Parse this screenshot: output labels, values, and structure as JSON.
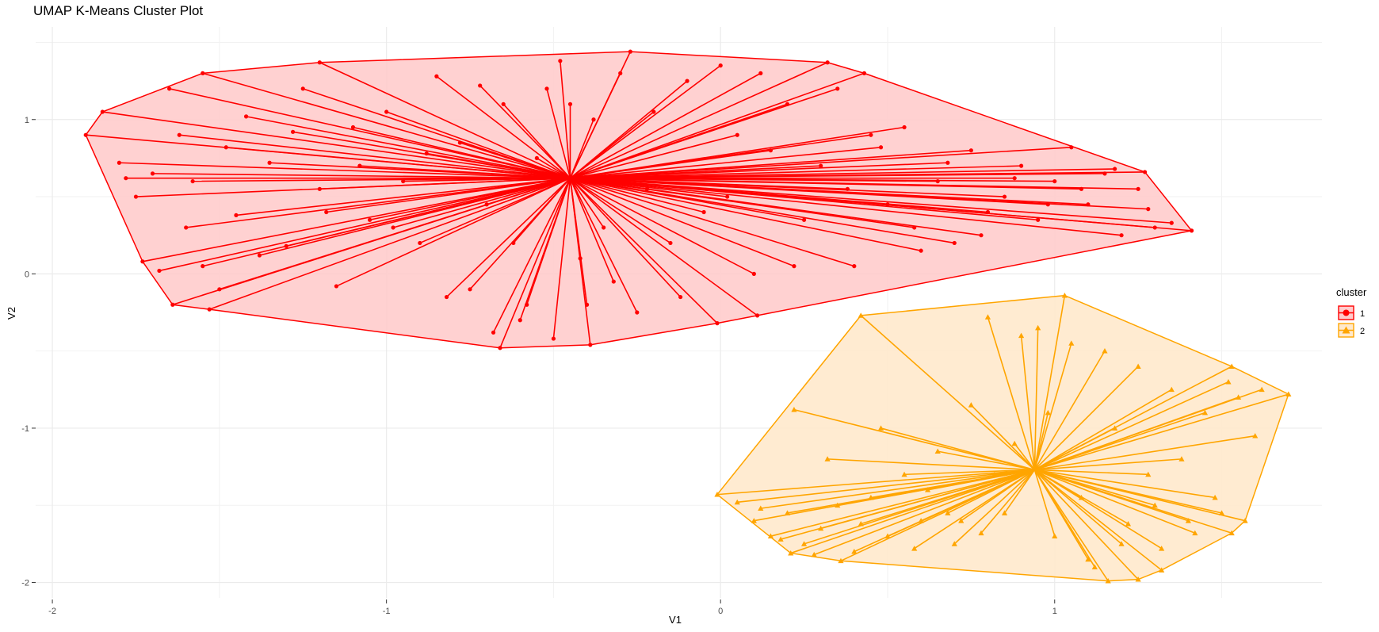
{
  "chart_data": {
    "type": "scatter",
    "title": "UMAP K-Means Cluster Plot",
    "xlabel": "V1",
    "ylabel": "V2",
    "xlim": [
      -2.05,
      1.8
    ],
    "ylim": [
      -2.1,
      1.6
    ],
    "x_ticks": [
      -2,
      -1,
      0,
      1
    ],
    "y_ticks": [
      -2,
      -1,
      0,
      1
    ],
    "x_tick_labels": [
      "-2",
      "-1",
      "0",
      "1"
    ],
    "y_tick_labels": [
      "-2",
      "-1",
      "0",
      "1"
    ],
    "grid": true,
    "legend_position": "right",
    "legend": {
      "title": "cluster",
      "entries": [
        "1",
        "2"
      ]
    },
    "series": [
      {
        "name": "1",
        "color": "#ff0000",
        "fill": "#ffcccc",
        "marker": "circle",
        "centroid": [
          -0.45,
          0.62
        ],
        "hull": [
          [
            -1.9,
            0.9
          ],
          [
            -1.85,
            1.05
          ],
          [
            -1.55,
            1.3
          ],
          [
            -1.2,
            1.37
          ],
          [
            -0.27,
            1.44
          ],
          [
            0.32,
            1.37
          ],
          [
            0.43,
            1.3
          ],
          [
            1.27,
            0.66
          ],
          [
            1.41,
            0.28
          ],
          [
            0.11,
            -0.27
          ],
          [
            -0.01,
            -0.32
          ],
          [
            -0.39,
            -0.46
          ],
          [
            -0.66,
            -0.48
          ],
          [
            -1.53,
            -0.23
          ],
          [
            -1.64,
            -0.2
          ],
          [
            -1.73,
            0.08
          ]
        ],
        "points": [
          [
            -1.9,
            0.9
          ],
          [
            -1.85,
            1.05
          ],
          [
            -1.55,
            1.3
          ],
          [
            -1.2,
            1.37
          ],
          [
            -0.27,
            1.44
          ],
          [
            0.32,
            1.37
          ],
          [
            0.43,
            1.3
          ],
          [
            1.27,
            0.66
          ],
          [
            1.41,
            0.28
          ],
          [
            0.11,
            -0.27
          ],
          [
            -0.01,
            -0.32
          ],
          [
            -0.39,
            -0.46
          ],
          [
            -0.66,
            -0.48
          ],
          [
            -1.53,
            -0.23
          ],
          [
            -1.64,
            -0.2
          ],
          [
            -1.73,
            0.08
          ],
          [
            -1.8,
            0.72
          ],
          [
            -1.75,
            0.5
          ],
          [
            -1.7,
            0.65
          ],
          [
            -1.65,
            1.2
          ],
          [
            -1.6,
            0.3
          ],
          [
            -1.55,
            0.05
          ],
          [
            -1.5,
            -0.1
          ],
          [
            -1.45,
            0.38
          ],
          [
            -1.42,
            1.02
          ],
          [
            -1.35,
            0.72
          ],
          [
            -1.3,
            0.18
          ],
          [
            -1.25,
            1.2
          ],
          [
            -1.2,
            0.55
          ],
          [
            -1.15,
            -0.08
          ],
          [
            -1.1,
            0.95
          ],
          [
            -1.05,
            0.35
          ],
          [
            -1.0,
            1.05
          ],
          [
            -0.95,
            0.6
          ],
          [
            -0.9,
            0.2
          ],
          [
            -0.85,
            1.28
          ],
          [
            -0.82,
            -0.15
          ],
          [
            -0.78,
            0.85
          ],
          [
            -0.75,
            -0.1
          ],
          [
            -0.7,
            0.45
          ],
          [
            -0.68,
            -0.38
          ],
          [
            -0.65,
            1.1
          ],
          [
            -0.6,
            -0.3
          ],
          [
            -0.55,
            0.75
          ],
          [
            -0.52,
            1.2
          ],
          [
            -0.5,
            -0.42
          ],
          [
            -0.48,
            1.38
          ],
          [
            -0.42,
            0.1
          ],
          [
            -0.4,
            -0.2
          ],
          [
            -0.38,
            1.0
          ],
          [
            -0.35,
            0.3
          ],
          [
            -0.3,
            1.3
          ],
          [
            -0.25,
            -0.25
          ],
          [
            -0.2,
            1.05
          ],
          [
            -0.15,
            0.2
          ],
          [
            -0.1,
            1.25
          ],
          [
            -0.05,
            0.4
          ],
          [
            0.0,
            1.35
          ],
          [
            0.05,
            0.9
          ],
          [
            0.1,
            0.0
          ],
          [
            0.15,
            0.8
          ],
          [
            0.2,
            1.1
          ],
          [
            0.25,
            0.35
          ],
          [
            0.3,
            0.7
          ],
          [
            0.35,
            1.2
          ],
          [
            0.4,
            0.05
          ],
          [
            0.45,
            0.9
          ],
          [
            0.5,
            0.45
          ],
          [
            0.55,
            0.95
          ],
          [
            0.6,
            0.15
          ],
          [
            0.65,
            0.6
          ],
          [
            0.7,
            0.2
          ],
          [
            0.75,
            0.8
          ],
          [
            0.8,
            0.4
          ],
          [
            0.85,
            0.5
          ],
          [
            0.9,
            0.7
          ],
          [
            0.95,
            0.35
          ],
          [
            1.0,
            0.6
          ],
          [
            1.05,
            0.82
          ],
          [
            1.1,
            0.45
          ],
          [
            1.15,
            0.65
          ],
          [
            1.2,
            0.25
          ],
          [
            1.25,
            0.55
          ],
          [
            1.3,
            0.3
          ],
          [
            1.35,
            0.33
          ],
          [
            -1.78,
            0.62
          ],
          [
            -1.68,
            0.02
          ],
          [
            -1.62,
            0.9
          ],
          [
            -1.58,
            0.6
          ],
          [
            -1.48,
            0.82
          ],
          [
            -1.38,
            0.12
          ],
          [
            -1.28,
            0.92
          ],
          [
            -1.18,
            0.4
          ],
          [
            -1.08,
            0.7
          ],
          [
            -0.98,
            0.3
          ],
          [
            -0.88,
            0.78
          ],
          [
            -0.72,
            1.22
          ],
          [
            -0.62,
            0.2
          ],
          [
            -0.58,
            -0.2
          ],
          [
            -0.45,
            1.1
          ],
          [
            -0.32,
            -0.05
          ],
          [
            -0.22,
            0.55
          ],
          [
            -0.12,
            -0.15
          ],
          [
            0.02,
            0.5
          ],
          [
            0.12,
            1.3
          ],
          [
            0.22,
            0.05
          ],
          [
            0.38,
            0.55
          ],
          [
            0.48,
            0.82
          ],
          [
            0.58,
            0.3
          ],
          [
            0.68,
            0.72
          ],
          [
            0.78,
            0.25
          ],
          [
            0.88,
            0.62
          ],
          [
            0.98,
            0.45
          ],
          [
            1.08,
            0.55
          ],
          [
            1.18,
            0.68
          ],
          [
            1.28,
            0.42
          ]
        ]
      },
      {
        "name": "2",
        "color": "#ffa500",
        "fill": "#ffe9cc",
        "marker": "triangle",
        "centroid": [
          0.94,
          -1.27
        ],
        "hull": [
          [
            -0.01,
            -1.43
          ],
          [
            0.21,
            -1.81
          ],
          [
            0.36,
            -1.86
          ],
          [
            1.16,
            -1.99
          ],
          [
            1.25,
            -1.98
          ],
          [
            1.32,
            -1.92
          ],
          [
            1.53,
            -1.68
          ],
          [
            1.57,
            -1.6
          ],
          [
            1.7,
            -0.78
          ],
          [
            1.53,
            -0.6
          ],
          [
            1.03,
            -0.14
          ],
          [
            0.42,
            -0.27
          ]
        ],
        "points": [
          [
            -0.01,
            -1.43
          ],
          [
            0.21,
            -1.81
          ],
          [
            0.36,
            -1.86
          ],
          [
            1.16,
            -1.99
          ],
          [
            1.25,
            -1.98
          ],
          [
            1.32,
            -1.92
          ],
          [
            1.53,
            -1.68
          ],
          [
            1.57,
            -1.6
          ],
          [
            1.7,
            -0.78
          ],
          [
            1.53,
            -0.6
          ],
          [
            1.03,
            -0.14
          ],
          [
            0.42,
            -0.27
          ],
          [
            0.05,
            -1.48
          ],
          [
            0.1,
            -1.6
          ],
          [
            0.15,
            -1.7
          ],
          [
            0.2,
            -1.55
          ],
          [
            0.25,
            -1.75
          ],
          [
            0.3,
            -1.65
          ],
          [
            0.35,
            -1.5
          ],
          [
            0.4,
            -1.8
          ],
          [
            0.45,
            -1.45
          ],
          [
            0.5,
            -1.7
          ],
          [
            0.55,
            -1.3
          ],
          [
            0.6,
            -1.6
          ],
          [
            0.65,
            -1.15
          ],
          [
            0.7,
            -1.75
          ],
          [
            0.75,
            -0.85
          ],
          [
            0.8,
            -0.28
          ],
          [
            0.85,
            -1.55
          ],
          [
            0.9,
            -0.4
          ],
          [
            0.95,
            -0.35
          ],
          [
            1.0,
            -1.7
          ],
          [
            1.05,
            -0.45
          ],
          [
            1.1,
            -1.85
          ],
          [
            1.15,
            -0.5
          ],
          [
            1.2,
            -1.75
          ],
          [
            1.25,
            -0.6
          ],
          [
            1.3,
            -1.5
          ],
          [
            1.35,
            -0.75
          ],
          [
            1.4,
            -1.6
          ],
          [
            1.45,
            -0.9
          ],
          [
            1.5,
            -1.55
          ],
          [
            1.55,
            -0.8
          ],
          [
            1.6,
            -1.05
          ],
          [
            0.22,
            -0.88
          ],
          [
            0.32,
            -1.2
          ],
          [
            0.48,
            -1.0
          ],
          [
            0.62,
            -1.4
          ],
          [
            0.72,
            -1.6
          ],
          [
            0.82,
            -1.3
          ],
          [
            0.88,
            -1.1
          ],
          [
            0.98,
            -0.9
          ],
          [
            1.08,
            -1.45
          ],
          [
            1.18,
            -1.0
          ],
          [
            1.28,
            -1.3
          ],
          [
            1.38,
            -1.2
          ],
          [
            1.48,
            -1.45
          ],
          [
            0.12,
            -1.52
          ],
          [
            0.18,
            -1.72
          ],
          [
            0.28,
            -1.82
          ],
          [
            0.42,
            -1.62
          ],
          [
            0.58,
            -1.78
          ],
          [
            0.68,
            -1.55
          ],
          [
            0.78,
            -1.68
          ],
          [
            1.12,
            -1.9
          ],
          [
            1.22,
            -1.62
          ],
          [
            1.32,
            -1.78
          ],
          [
            1.42,
            -1.68
          ],
          [
            1.52,
            -0.7
          ],
          [
            1.62,
            -0.75
          ]
        ]
      }
    ]
  }
}
